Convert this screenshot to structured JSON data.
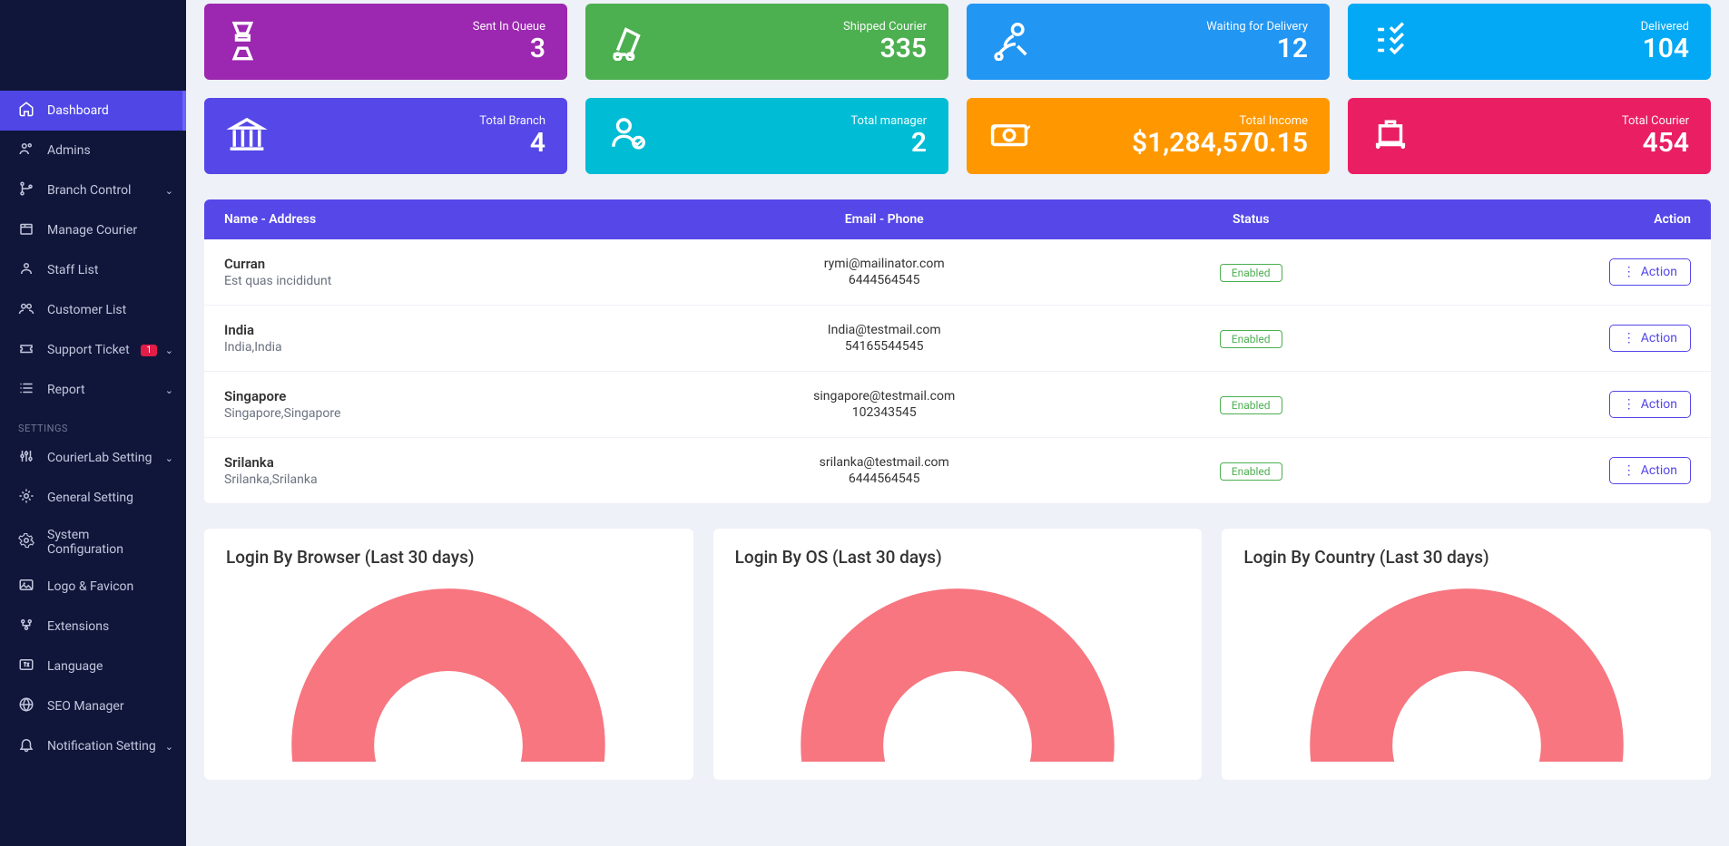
{
  "sidebar": {
    "items": [
      {
        "label": "Dashboard",
        "active": true
      },
      {
        "label": "Admins"
      },
      {
        "label": "Branch Control",
        "chev": true
      },
      {
        "label": "Manage Courier"
      },
      {
        "label": "Staff List"
      },
      {
        "label": "Customer List"
      },
      {
        "label": "Support Ticket",
        "badge": "1",
        "chev": true
      },
      {
        "label": "Report",
        "chev": true
      }
    ],
    "settings_header": "SETTINGS",
    "settings": [
      {
        "label": "CourierLab Setting",
        "chev": true
      },
      {
        "label": "General Setting"
      },
      {
        "label": "System Configuration"
      },
      {
        "label": "Logo & Favicon"
      },
      {
        "label": "Extensions"
      },
      {
        "label": "Language"
      },
      {
        "label": "SEO Manager"
      },
      {
        "label": "Notification Setting",
        "chev": true
      }
    ]
  },
  "stats_row1": [
    {
      "label": "Sent In Queue",
      "value": "3",
      "color": "c-purple"
    },
    {
      "label": "Shipped Courier",
      "value": "335",
      "color": "c-green"
    },
    {
      "label": "Waiting for Delivery",
      "value": "12",
      "color": "c-blue"
    },
    {
      "label": "Delivered",
      "value": "104",
      "color": "c-sky"
    }
  ],
  "stats_row2": [
    {
      "label": "Total Branch",
      "value": "4",
      "color": "c-indigo"
    },
    {
      "label": "Total manager",
      "value": "2",
      "color": "c-teal"
    },
    {
      "label": "Total Income",
      "value": "$1,284,570.15",
      "color": "c-orange"
    },
    {
      "label": "Total Courier",
      "value": "454",
      "color": "c-pink"
    }
  ],
  "table": {
    "headers": {
      "name": "Name - Address",
      "contact": "Email - Phone",
      "status": "Status",
      "action": "Action"
    },
    "action_label": "Action",
    "status_label": "Enabled",
    "rows": [
      {
        "name": "Curran",
        "address": "Est quas incididunt",
        "email": "rymi@mailinator.com",
        "phone": "6444564545"
      },
      {
        "name": "India",
        "address": "India,India",
        "email": "India@testmail.com",
        "phone": "54165544545"
      },
      {
        "name": "Singapore",
        "address": "Singapore,Singapore",
        "email": "singapore@testmail.com",
        "phone": "102343545"
      },
      {
        "name": "Srilanka",
        "address": "Srilanka,Srilanka",
        "email": "srilanka@testmail.com",
        "phone": "6444564545"
      }
    ]
  },
  "charts": {
    "donut_color": "#f77680",
    "cards": [
      {
        "title": "Login By Browser (Last 30 days)"
      },
      {
        "title": "Login By OS (Last 30 days)"
      },
      {
        "title": "Login By Country (Last 30 days)"
      }
    ]
  }
}
